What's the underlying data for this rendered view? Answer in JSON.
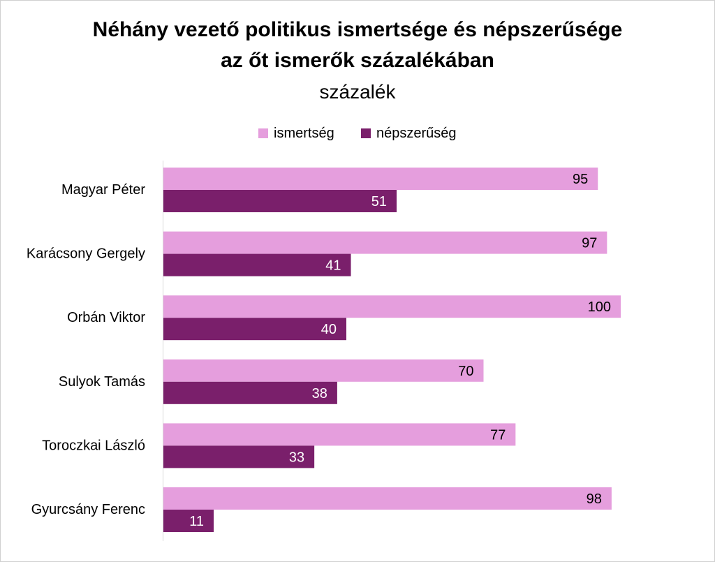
{
  "chart_data": {
    "type": "bar",
    "orientation": "horizontal",
    "title_line1": "Néhány vezető politikus ismertsége és népszerűsége",
    "title_line2": "az őt ismerők százalékában",
    "subtitle": "százalék",
    "categories": [
      "Magyar Péter",
      "Karácsony Gergely",
      "Orbán Viktor",
      "Sulyok Tamás",
      "Toroczkai László",
      "Gyurcsány Ferenc"
    ],
    "series": [
      {
        "name": "ismertség",
        "values": [
          95,
          97,
          100,
          70,
          77,
          98
        ],
        "color": "#E59EDD"
      },
      {
        "name": "népszerűség",
        "values": [
          51,
          41,
          40,
          38,
          33,
          11
        ],
        "color": "#7A1F6B"
      }
    ],
    "xlim": [
      0,
      100
    ],
    "legend_position": "top",
    "grid": false
  }
}
